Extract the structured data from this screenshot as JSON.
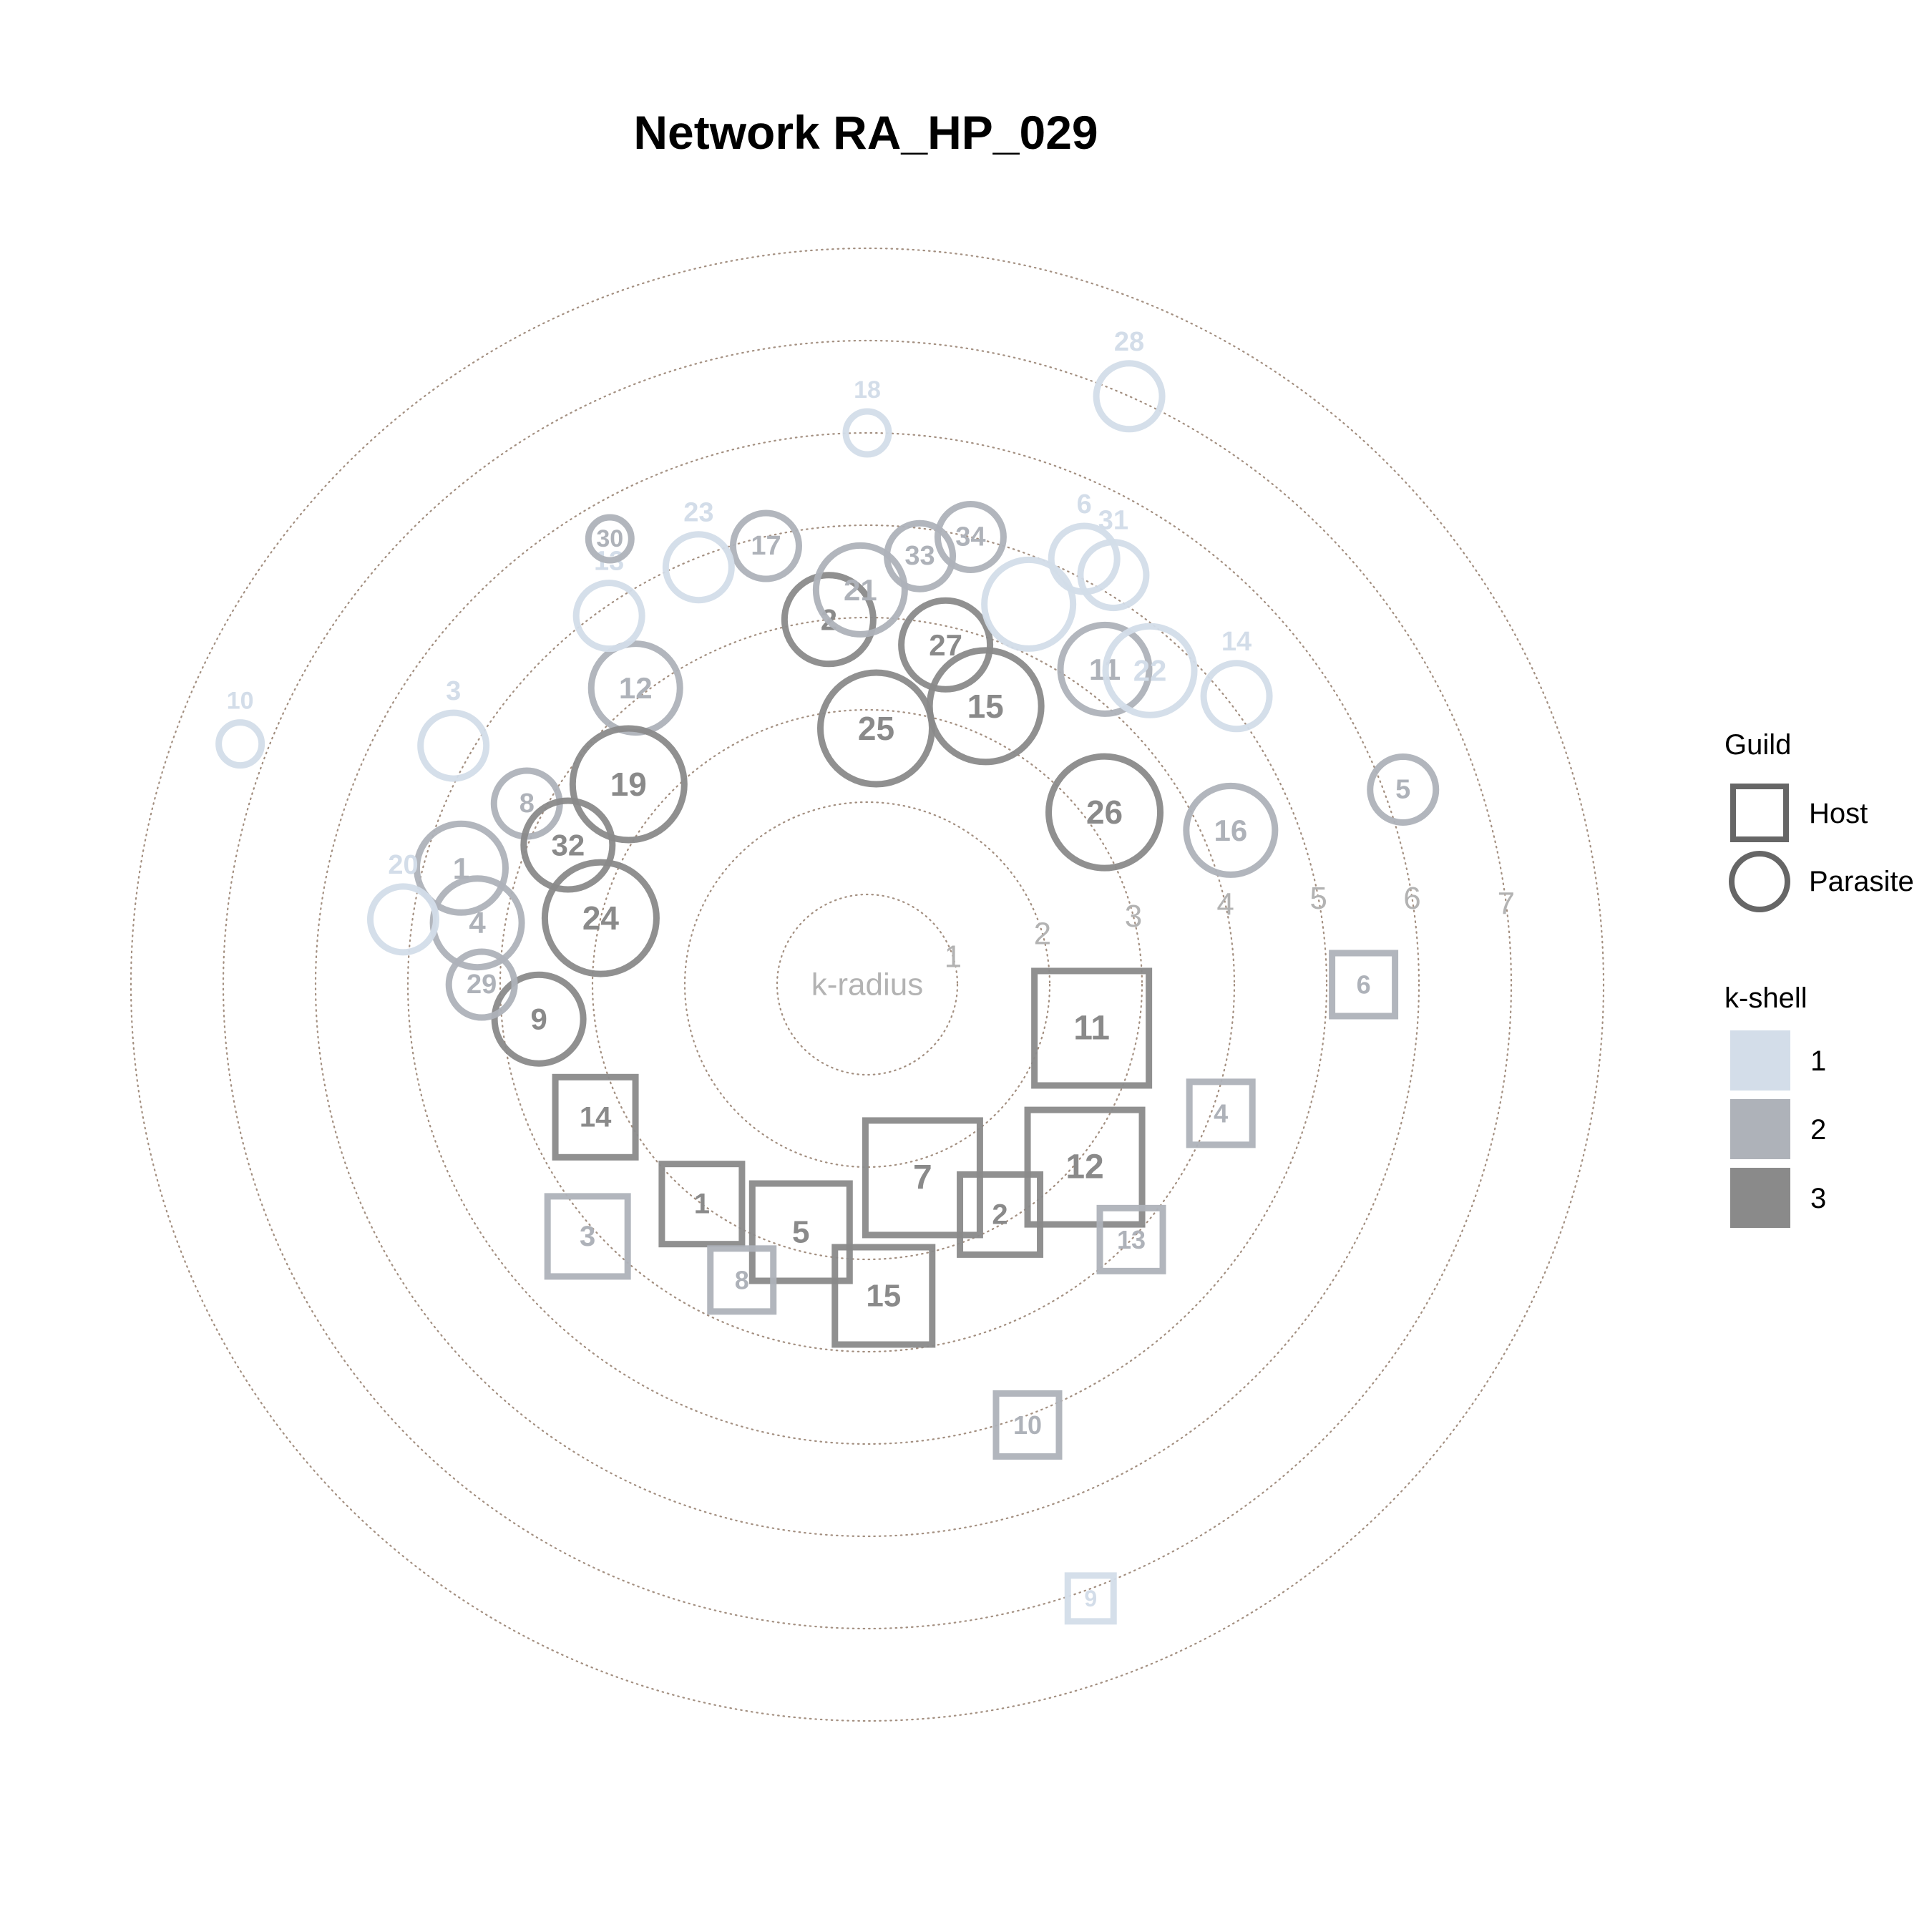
{
  "chart_data": {
    "type": "scatter",
    "title": "Network RA_HP_029",
    "center_label": "k-radius",
    "ring_labels": [
      "1",
      "2",
      "3",
      "4",
      "5",
      "6",
      "7"
    ],
    "k_shell_colors": {
      "1": "#d3dde9",
      "2": "#aeb2b9",
      "3": "#8a8a8a"
    },
    "legend": {
      "guild_title": "Guild",
      "guild_items": [
        {
          "shape": "square",
          "label": "Host"
        },
        {
          "shape": "circle",
          "label": "Parasite"
        }
      ],
      "kshell_title": "k-shell",
      "kshell_items": [
        {
          "label": "1",
          "shell": 1
        },
        {
          "label": "2",
          "shell": 2
        },
        {
          "label": "3",
          "shell": 3
        }
      ]
    },
    "parasites": [
      {
        "id": "1",
        "shell": 2,
        "angle": 164,
        "kradius": 3.6,
        "degree": 3
      },
      {
        "id": "2",
        "shell": 3,
        "angle": 96,
        "kradius": 3.0,
        "degree": 3
      },
      {
        "id": "3",
        "shell": 1,
        "angle": 150,
        "kradius": 4.2,
        "degree": 2
      },
      {
        "id": "4",
        "shell": 2,
        "angle": 171,
        "kradius": 3.3,
        "degree": 3
      },
      {
        "id": "5",
        "shell": 2,
        "angle": 20,
        "kradius": 5.2,
        "degree": 2
      },
      {
        "id": "6",
        "shell": 1,
        "angle": 63,
        "kradius": 4.2,
        "degree": 2
      },
      {
        "id": "8",
        "shell": 2,
        "angle": 152,
        "kradius": 3.2,
        "degree": 2
      },
      {
        "id": "9",
        "shell": 3,
        "angle": 186,
        "kradius": 2.6,
        "degree": 3
      },
      {
        "id": "10",
        "shell": 1,
        "angle": 159,
        "kradius": 6.3,
        "degree": 1
      },
      {
        "id": "11",
        "shell": 2,
        "angle": 53,
        "kradius": 3.3,
        "degree": 3
      },
      {
        "id": "12",
        "shell": 2,
        "angle": 128,
        "kradius": 3.1,
        "degree": 3
      },
      {
        "id": "13",
        "shell": 1,
        "angle": 125,
        "kradius": 3.9,
        "degree": 2
      },
      {
        "id": "14",
        "shell": 1,
        "angle": 38,
        "kradius": 4.1,
        "degree": 2
      },
      {
        "id": "15",
        "shell": 3,
        "angle": 67,
        "kradius": 2.3,
        "degree": 4
      },
      {
        "id": "16",
        "shell": 2,
        "angle": 23,
        "kradius": 3.3,
        "degree": 3
      },
      {
        "id": "17",
        "shell": 2,
        "angle": 103,
        "kradius": 3.9,
        "degree": 2
      },
      {
        "id": "18",
        "shell": 1,
        "angle": 90,
        "kradius": 5.0,
        "degree": 1
      },
      {
        "id": "19",
        "shell": 3,
        "angle": 140,
        "kradius": 2.4,
        "degree": 4
      },
      {
        "id": "20",
        "shell": 1,
        "angle": 172,
        "kradius": 4.1,
        "degree": 2
      },
      {
        "id": "21",
        "shell": 2,
        "angle": 91,
        "kradius": 3.3,
        "degree": 3
      },
      {
        "id": "22",
        "shell": 1,
        "angle": 48,
        "kradius": 3.6,
        "degree": 3
      },
      {
        "id": "23",
        "shell": 1,
        "angle": 112,
        "kradius": 3.9,
        "degree": 2
      },
      {
        "id": "24",
        "shell": 3,
        "angle": 166,
        "kradius": 2.0,
        "degree": 4
      },
      {
        "id": "25",
        "shell": 3,
        "angle": 88,
        "kradius": 1.8,
        "degree": 4
      },
      {
        "id": "26",
        "shell": 3,
        "angle": 36,
        "kradius": 2.2,
        "degree": 4
      },
      {
        "id": "27",
        "shell": 3,
        "angle": 77,
        "kradius": 2.8,
        "degree": 3
      },
      {
        "id": "28",
        "shell": 1,
        "angle": 66,
        "kradius": 6.0,
        "degree": 2
      },
      {
        "id": "29",
        "shell": 2,
        "angle": 180,
        "kradius": 3.2,
        "degree": 2
      },
      {
        "id": "30",
        "shell": 2,
        "angle": 120,
        "kradius": 4.6,
        "degree": 1
      },
      {
        "id": "31",
        "shell": 1,
        "angle": 59,
        "kradius": 4.2,
        "degree": 2
      },
      {
        "id": "32",
        "shell": 3,
        "angle": 155,
        "kradius": 2.6,
        "degree": 3
      },
      {
        "id": "33",
        "shell": 2,
        "angle": 83,
        "kradius": 3.7,
        "degree": 2
      },
      {
        "id": "34",
        "shell": 2,
        "angle": 77,
        "kradius": 4.0,
        "degree": 2
      },
      {
        "id": "",
        "shell": 1,
        "angle": 67,
        "kradius": 3.5,
        "degree": 3
      }
    ],
    "hosts": [
      {
        "id": "1",
        "shell": 3,
        "angle": 233,
        "kradius": 2.0,
        "degree": 3
      },
      {
        "id": "2",
        "shell": 3,
        "angle": 300,
        "kradius": 1.9,
        "degree": 3
      },
      {
        "id": "3",
        "shell": 2,
        "angle": 222,
        "kradius": 3.1,
        "degree": 3
      },
      {
        "id": "4",
        "shell": 2,
        "angle": 340,
        "kradius": 3.1,
        "degree": 2
      },
      {
        "id": "5",
        "shell": 3,
        "angle": 255,
        "kradius": 1.8,
        "degree": 4
      },
      {
        "id": "6",
        "shell": 2,
        "angle": 0,
        "kradius": 4.4,
        "degree": 2
      },
      {
        "id": "7",
        "shell": 3,
        "angle": 286,
        "kradius": 1.2,
        "degree": 5
      },
      {
        "id": "8",
        "shell": 2,
        "angle": 247,
        "kradius": 2.5,
        "degree": 2
      },
      {
        "id": "9",
        "shell": 1,
        "angle": 290,
        "kradius": 6.1,
        "degree": 1
      },
      {
        "id": "10",
        "shell": 2,
        "angle": 290,
        "kradius": 4.1,
        "degree": 2
      },
      {
        "id": "11",
        "shell": 3,
        "angle": 349,
        "kradius": 1.5,
        "degree": 5
      },
      {
        "id": "12",
        "shell": 3,
        "angle": 320,
        "kradius": 2.1,
        "degree": 5
      },
      {
        "id": "13",
        "shell": 2,
        "angle": 316,
        "kradius": 3.0,
        "degree": 2
      },
      {
        "id": "14",
        "shell": 3,
        "angle": 206,
        "kradius": 2.3,
        "degree": 3
      },
      {
        "id": "15",
        "shell": 3,
        "angle": 273,
        "kradius": 2.4,
        "degree": 4
      }
    ]
  }
}
